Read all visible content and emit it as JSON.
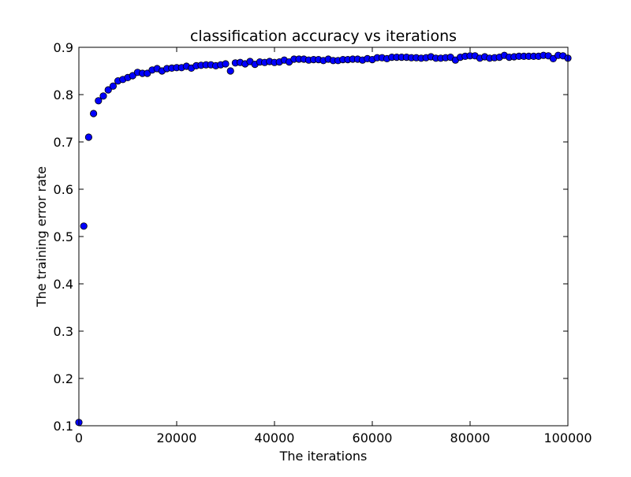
{
  "chart_data": {
    "type": "scatter",
    "title": "classification accuracy vs iterations",
    "xlabel": "The iterations",
    "ylabel": "The training error rate",
    "xlim": [
      0,
      100000
    ],
    "ylim": [
      0.1,
      0.9
    ],
    "xticks": [
      0,
      20000,
      40000,
      60000,
      80000,
      100000
    ],
    "xtick_labels": [
      "0",
      "20000",
      "40000",
      "60000",
      "80000",
      "100000"
    ],
    "yticks": [
      0.1,
      0.2,
      0.3,
      0.4,
      0.5,
      0.6,
      0.7,
      0.8,
      0.9
    ],
    "ytick_labels": [
      "0.1",
      "0.2",
      "0.3",
      "0.4",
      "0.5",
      "0.6",
      "0.7",
      "0.8",
      "0.9"
    ],
    "grid": false,
    "marker_color": "#0000ff",
    "series": [
      {
        "x": [
          0,
          1000,
          2000,
          3000,
          4000,
          5000,
          6000,
          7000,
          8000,
          9000,
          10000,
          11000,
          12000,
          13000,
          14000,
          15000,
          16000,
          17000,
          18000,
          19000,
          20000,
          21000,
          22000,
          23000,
          24000,
          25000,
          26000,
          27000,
          28000,
          29000,
          30000,
          31000,
          32000,
          33000,
          34000,
          35000,
          36000,
          37000,
          38000,
          39000,
          40000,
          41000,
          42000,
          43000,
          44000,
          45000,
          46000,
          47000,
          48000,
          49000,
          50000,
          51000,
          52000,
          53000,
          54000,
          55000,
          56000,
          57000,
          58000,
          59000,
          60000,
          61000,
          62000,
          63000,
          64000,
          65000,
          66000,
          67000,
          68000,
          69000,
          70000,
          71000,
          72000,
          73000,
          74000,
          75000,
          76000,
          77000,
          78000,
          79000,
          80000,
          81000,
          82000,
          83000,
          84000,
          85000,
          86000,
          87000,
          88000,
          89000,
          90000,
          91000,
          92000,
          93000,
          94000,
          95000,
          96000,
          97000,
          98000,
          99000,
          100000
        ],
        "y": [
          0.107,
          0.522,
          0.71,
          0.76,
          0.787,
          0.797,
          0.81,
          0.818,
          0.829,
          0.832,
          0.836,
          0.84,
          0.847,
          0.845,
          0.845,
          0.852,
          0.855,
          0.85,
          0.855,
          0.856,
          0.857,
          0.857,
          0.86,
          0.856,
          0.861,
          0.862,
          0.863,
          0.863,
          0.861,
          0.863,
          0.865,
          0.85,
          0.867,
          0.868,
          0.865,
          0.87,
          0.864,
          0.869,
          0.868,
          0.87,
          0.868,
          0.869,
          0.873,
          0.869,
          0.875,
          0.875,
          0.875,
          0.873,
          0.874,
          0.874,
          0.872,
          0.875,
          0.872,
          0.872,
          0.874,
          0.874,
          0.875,
          0.875,
          0.873,
          0.876,
          0.874,
          0.878,
          0.878,
          0.876,
          0.879,
          0.879,
          0.879,
          0.879,
          0.878,
          0.878,
          0.877,
          0.878,
          0.88,
          0.877,
          0.877,
          0.878,
          0.879,
          0.873,
          0.879,
          0.881,
          0.882,
          0.882,
          0.877,
          0.88,
          0.877,
          0.878,
          0.879,
          0.883,
          0.879,
          0.88,
          0.881,
          0.881,
          0.881,
          0.881,
          0.881,
          0.883,
          0.882,
          0.876,
          0.883,
          0.882,
          0.877
        ]
      }
    ]
  }
}
